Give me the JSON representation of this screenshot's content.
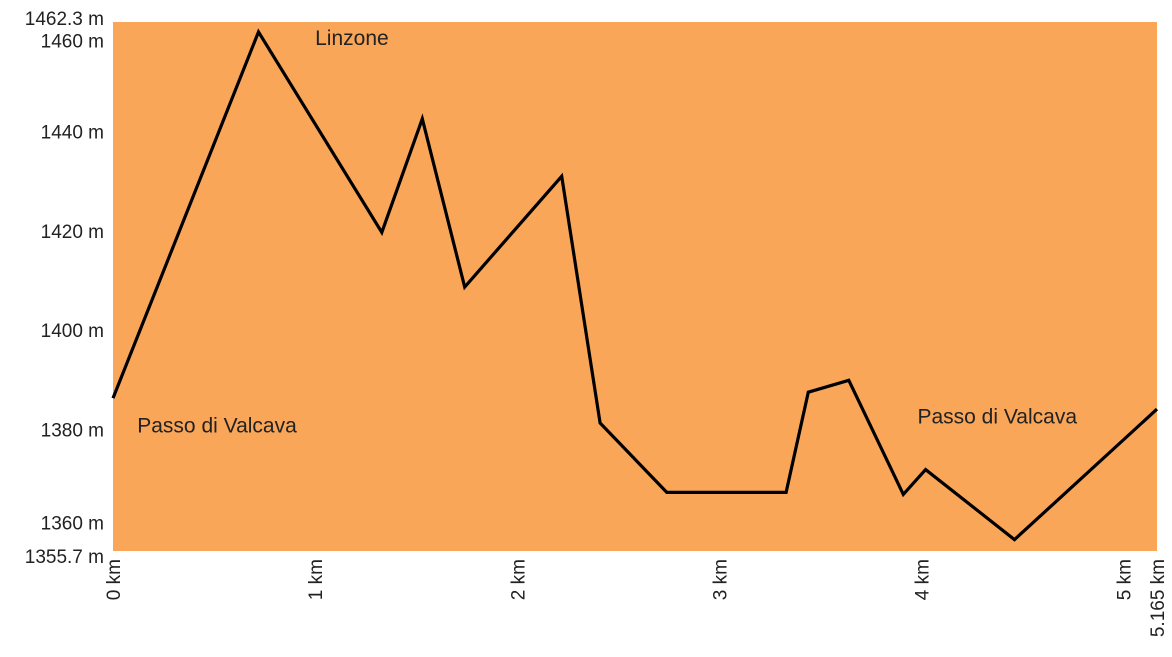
{
  "chart_data": {
    "type": "area",
    "title": "",
    "xlabel": "",
    "ylabel": "",
    "xlim": [
      0,
      5.165
    ],
    "ylim": [
      1355.7,
      1462.3
    ],
    "grid": false,
    "legend": "none",
    "colors": {
      "fill": "#f9a659",
      "line": "#000000"
    },
    "x": [
      0,
      0.72,
      1.33,
      1.53,
      1.74,
      2.22,
      2.41,
      2.74,
      3.33,
      3.44,
      3.64,
      3.91,
      4.02,
      4.46,
      5.165
    ],
    "y": [
      1386.5,
      1460.3,
      1419.9,
      1442.8,
      1408.9,
      1431.2,
      1381.5,
      1367.5,
      1367.5,
      1387.7,
      1390.1,
      1367.1,
      1372.1,
      1358.0,
      1384.3
    ],
    "y_ticks": [
      "1462.3 m",
      "1460 m",
      "1440 m",
      "1420 m",
      "1400 m",
      "1380 m",
      "1360 m",
      "1355.7 m"
    ],
    "y_tick_values": [
      1462.3,
      1460,
      1440,
      1420,
      1400,
      1380,
      1360,
      1355.7
    ],
    "x_ticks": [
      "0 km",
      "1 km",
      "2 km",
      "3 km",
      "4 km",
      "5 km",
      "5.165 km"
    ],
    "x_tick_values": [
      0,
      1,
      2,
      3,
      4,
      5,
      5.165
    ],
    "annotations": [
      {
        "text": "Linzone",
        "x": 1.0,
        "y": 1457.7
      },
      {
        "text": "Passo di Valcava",
        "x": 0.12,
        "y": 1379.6
      },
      {
        "text": "Passo di Valcava",
        "x": 3.98,
        "y": 1381.4
      }
    ]
  }
}
